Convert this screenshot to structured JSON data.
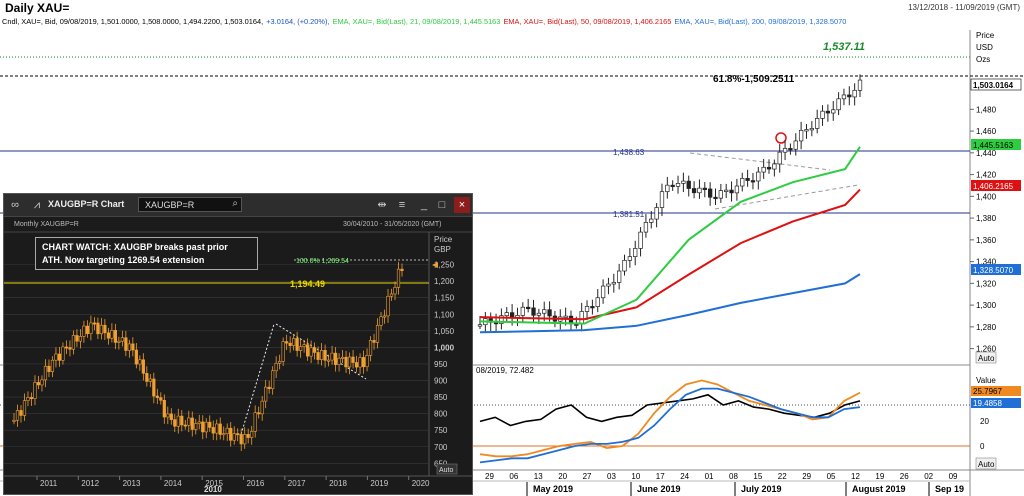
{
  "header": {
    "title": "Daily XAU=",
    "date_range": "13/12/2018 - 11/09/2019 (GMT)"
  },
  "legend": {
    "candle": "Cndl, XAU=, Bid, 09/08/2019, 1,501.0000, 1,508.0000, 1,494.2200, 1,503.0164,",
    "candle_change": "+3.0164, (+0.20%),",
    "ema21": "EMA, XAU=, Bid(Last), 21, 09/08/2019, 1,445.5163",
    "ema50": "EMA, XAU=, Bid(Last), 50, 09/08/2019, 1,406.2165",
    "ema200": "EMA, XAU=, Bid(Last), 200, 09/08/2019, 1,328.5070",
    "osc": "08/2019, 72.482"
  },
  "main_chart": {
    "axis_title": [
      "Price",
      "USD",
      "Ozs"
    ],
    "y_ticks": [
      "1,480",
      "1,460",
      "1,440",
      "1,420",
      "1,400",
      "1,380",
      "1,360",
      "1,340",
      "1,320",
      "1,300",
      "1,280",
      "1,260"
    ],
    "x_ticks": [
      "29",
      "06",
      "13",
      "20",
      "27",
      "03",
      "10",
      "17",
      "24",
      "01",
      "08",
      "15",
      "22",
      "29",
      "05",
      "12",
      "19",
      "26",
      "02",
      "09"
    ],
    "x_month_labels": [
      "May 2019",
      "June 2019",
      "July 2019",
      "August 2019",
      "Sep 19"
    ],
    "target_label": "1,537.11",
    "fib_label": "61.8%-1,509.2511",
    "level_1438": "1,438.63",
    "level_1381": "1,381.51",
    "price_tag": "1,503.0164",
    "ema21_tag": "1,445.5163",
    "ema50_tag": "1,406.2165",
    "ema200_tag": "1,328.5070",
    "auto": "Auto",
    "osc_axis_title": "Value",
    "osc_tag1": "25.7967",
    "osc_tag2": "19.4858",
    "osc_ticks": [
      "20",
      "0"
    ],
    "colors": {
      "ema21": "#2ecc40",
      "ema50": "#dd1111",
      "ema200": "#1f6fd6",
      "levels": "#22338a",
      "target": "#1a8a2a"
    }
  },
  "inset": {
    "window_title": "XAUGBP=R Chart",
    "search_value": "XAUGBP=R",
    "subtitle": "Monthly XAUGBP=R",
    "range": "30/04/2010 - 31/05/2020 (GMT)",
    "callout_line1": "CHART WATCH: XAUGBP breaks past prior",
    "callout_line2": "ATH. Now targeting 1269.54 extension",
    "axis_title": [
      "Price",
      "GBP"
    ],
    "y_ticks": [
      "1,250",
      "1,200",
      "1,150",
      "1,100",
      "1,050",
      "1,000",
      "950",
      "900",
      "850",
      "800",
      "750",
      "700",
      "650"
    ],
    "x_ticks": [
      "2011",
      "2012",
      "2013",
      "2014",
      "2015",
      "2016",
      "2017",
      "2018",
      "2019",
      "2020"
    ],
    "decade_label": "2010",
    "ext_label": "100.0% 1,269.54",
    "prior_ath": "1,194.49",
    "auto": "Auto"
  },
  "chart_data": [
    {
      "type": "line",
      "title": "Daily XAU=",
      "ylabel": "Price USD Ozs",
      "ylim": [
        1250,
        1545
      ],
      "x": [
        "2019-04-29",
        "2019-05-13",
        "2019-05-27",
        "2019-06-10",
        "2019-06-24",
        "2019-07-08",
        "2019-07-22",
        "2019-08-05",
        "2019-08-09"
      ],
      "series": [
        {
          "name": "Cndl XAU= Bid close",
          "values": [
            1282,
            1296,
            1284,
            1334,
            1414,
            1400,
            1424,
            1467,
            1503
          ]
        },
        {
          "name": "EMA 21",
          "values": [
            1285,
            1284,
            1283,
            1305,
            1360,
            1395,
            1413,
            1425,
            1445.5
          ]
        },
        {
          "name": "EMA 50",
          "values": [
            1289,
            1288,
            1287,
            1298,
            1328,
            1357,
            1377,
            1392,
            1406.2
          ]
        },
        {
          "name": "EMA 200",
          "values": [
            1275,
            1276,
            1277,
            1281,
            1291,
            1302,
            1311,
            1320,
            1328.5
          ]
        }
      ],
      "levels": [
        1537.11,
        1509.2511,
        1438.63,
        1381.51
      ]
    },
    {
      "type": "line",
      "title": "Monthly XAUGBP=R",
      "ylabel": "Price GBP",
      "ylim": [
        640,
        1280
      ],
      "x": [
        "2010",
        "2011",
        "2012",
        "2013",
        "2014",
        "2015",
        "2016",
        "2017",
        "2018",
        "2019",
        "2019-08"
      ],
      "series": [
        {
          "name": "XAUGBP=R close",
          "values": [
            780,
            960,
            1070,
            1000,
            780,
            760,
            720,
            1020,
            970,
            950,
            1245
          ]
        }
      ],
      "levels": [
        1269.54,
        1194.49
      ]
    }
  ]
}
